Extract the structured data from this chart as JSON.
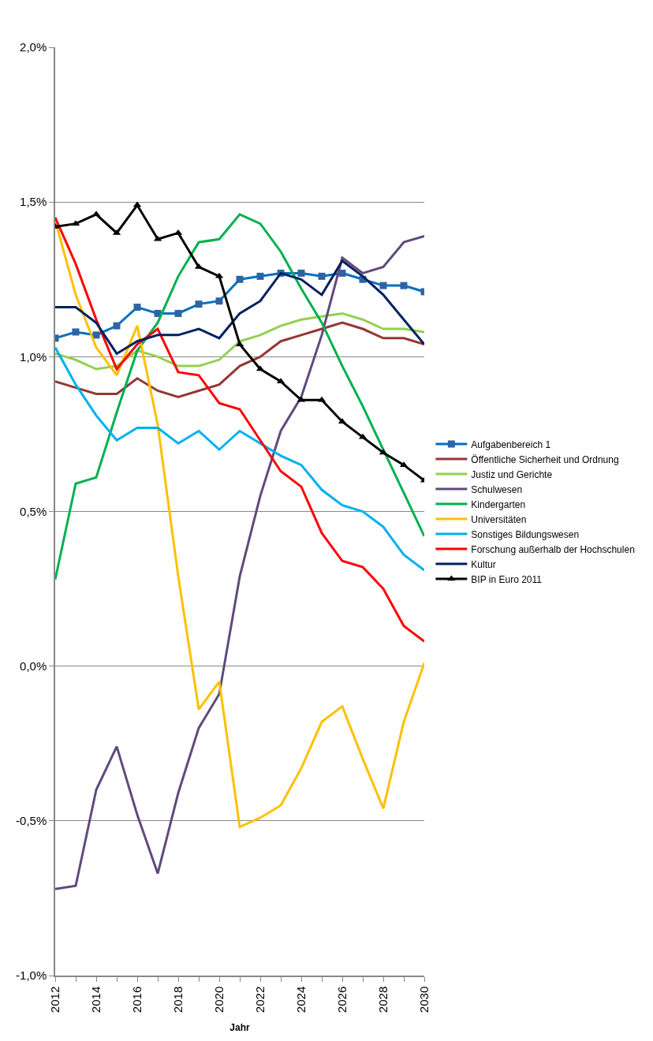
{
  "chart_data": {
    "type": "line",
    "xlabel": "Jahr",
    "x": [
      2012,
      2013,
      2014,
      2015,
      2016,
      2017,
      2018,
      2019,
      2020,
      2021,
      2022,
      2023,
      2024,
      2025,
      2026,
      2027,
      2028,
      2029,
      2030
    ],
    "xlim": [
      2012,
      2030
    ],
    "xticks": [
      2012,
      {
        "value": 2013,
        "label": null
      },
      2014,
      {
        "value": 2015,
        "label": null
      },
      2016,
      {
        "value": 2017,
        "label": null
      },
      2018,
      {
        "value": 2019,
        "label": null
      },
      2020,
      {
        "value": 2021,
        "label": null
      },
      2022,
      {
        "value": 2023,
        "label": null
      },
      2024,
      {
        "value": 2025,
        "label": null
      },
      2026,
      {
        "value": 2027,
        "label": null
      },
      2028,
      {
        "value": 2029,
        "label": null
      },
      2030
    ],
    "ylim": [
      -1,
      2
    ],
    "yticks": [
      {
        "value": -1,
        "label": "-1,0%"
      },
      {
        "value": -0.5,
        "label": "-0,5%"
      },
      {
        "value": 0,
        "label": "0,0%"
      },
      {
        "value": 0.5,
        "label": "0,5%"
      },
      {
        "value": 1,
        "label": "1,0%"
      },
      {
        "value": 1.5,
        "label": "1,5%"
      },
      {
        "value": 2,
        "label": "2,0%"
      }
    ],
    "grid": "y",
    "legend": "right",
    "series": [
      {
        "name": "Aufgabenbereich 1",
        "color": "#0070c0",
        "marker": "square",
        "values": [
          1.06,
          1.08,
          1.07,
          1.1,
          1.16,
          1.14,
          1.14,
          1.17,
          1.18,
          1.25,
          1.26,
          1.27,
          1.27,
          1.26,
          1.27,
          1.25,
          1.23,
          1.23,
          1.21
        ]
      },
      {
        "name": "Öffentliche Sicherheit und Ordnung",
        "color": "#953735",
        "values": [
          0.92,
          0.9,
          0.88,
          0.88,
          0.93,
          0.89,
          0.87,
          0.89,
          0.91,
          0.97,
          1.0,
          1.05,
          1.07,
          1.09,
          1.11,
          1.09,
          1.06,
          1.06,
          1.04
        ]
      },
      {
        "name": "Justiz und Gerichte",
        "color": "#92d050",
        "values": [
          1.01,
          0.99,
          0.96,
          0.97,
          1.02,
          1.0,
          0.97,
          0.97,
          0.99,
          1.05,
          1.07,
          1.1,
          1.12,
          1.13,
          1.14,
          1.12,
          1.09,
          1.09,
          1.08
        ]
      },
      {
        "name": "Schulwesen",
        "color": "#604a7b",
        "values": [
          -0.72,
          -0.71,
          -0.4,
          -0.26,
          -0.48,
          -0.67,
          -0.41,
          -0.2,
          -0.09,
          0.29,
          0.55,
          0.76,
          0.87,
          1.07,
          1.32,
          1.27,
          1.29,
          1.37,
          1.39
        ]
      },
      {
        "name": "Kindergarten",
        "color": "#00b050",
        "values": [
          0.28,
          0.59,
          0.61,
          0.82,
          1.02,
          1.11,
          1.26,
          1.37,
          1.38,
          1.46,
          1.43,
          1.34,
          1.22,
          1.11,
          0.97,
          0.84,
          0.7,
          0.56,
          0.42
        ]
      },
      {
        "name": "Universitäten",
        "color": "#ffc000",
        "values": [
          1.44,
          1.2,
          1.03,
          0.94,
          1.1,
          0.78,
          0.29,
          -0.14,
          -0.05,
          -0.52,
          -0.49,
          -0.45,
          -0.33,
          -0.18,
          -0.13,
          -0.3,
          -0.46,
          -0.18,
          0.01
        ]
      },
      {
        "name": "Sonstiges Bildungswesen",
        "color": "#00b0f0",
        "values": [
          1.03,
          0.91,
          0.81,
          0.73,
          0.77,
          0.77,
          0.72,
          0.76,
          0.7,
          0.76,
          0.72,
          0.68,
          0.65,
          0.57,
          0.52,
          0.5,
          0.45,
          0.36,
          0.31
        ]
      },
      {
        "name": "Forschung außerhalb der Hochschulen",
        "color": "#ff0000",
        "values": [
          1.45,
          1.3,
          1.12,
          0.96,
          1.04,
          1.09,
          0.95,
          0.94,
          0.85,
          0.83,
          0.73,
          0.63,
          0.58,
          0.43,
          0.34,
          0.32,
          0.25,
          0.13,
          0.08
        ]
      },
      {
        "name": "Kultur",
        "color": "#002060",
        "values": [
          1.16,
          1.16,
          1.11,
          1.01,
          1.05,
          1.07,
          1.07,
          1.09,
          1.06,
          1.14,
          1.18,
          1.27,
          1.25,
          1.2,
          1.31,
          1.26,
          1.2,
          1.12,
          1.04
        ]
      },
      {
        "name": "BIP in Euro 2011",
        "color": "#000000",
        "marker": "triangle",
        "values": [
          1.42,
          1.43,
          1.46,
          1.4,
          1.49,
          1.38,
          1.4,
          1.29,
          1.26,
          1.04,
          0.96,
          0.92,
          0.86,
          0.86,
          0.79,
          0.74,
          0.69,
          0.65,
          0.6
        ]
      }
    ]
  }
}
